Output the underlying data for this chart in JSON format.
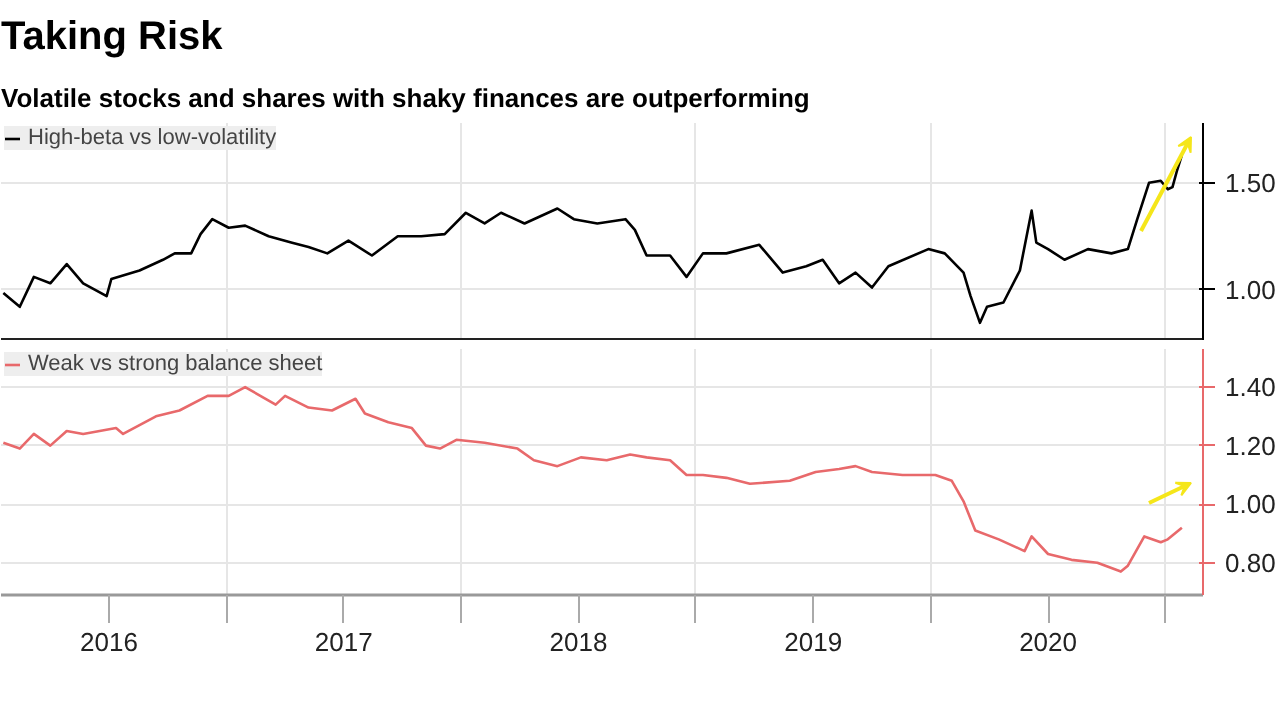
{
  "chart_data": [
    {
      "type": "line",
      "title": "Taking Risk",
      "subtitle": "Volatile stocks and shares with shaky finances are outperforming",
      "series": [
        {
          "name": "High-beta vs low-volatility",
          "color": "#000000",
          "x": [
            2016.05,
            2016.12,
            2016.18,
            2016.25,
            2016.32,
            2016.39,
            2016.49,
            2016.51,
            2016.63,
            2016.73,
            2016.78,
            2016.85,
            2016.89,
            2016.94,
            2017.01,
            2017.08,
            2017.18,
            2017.28,
            2017.35,
            2017.43,
            2017.52,
            2017.62,
            2017.73,
            2017.83,
            2017.93,
            2018.02,
            2018.1,
            2018.17,
            2018.27,
            2018.41,
            2018.48,
            2018.58,
            2018.7,
            2018.74,
            2018.79,
            2018.89,
            2018.96,
            2019.03,
            2019.13,
            2019.27,
            2019.37,
            2019.47,
            2019.54,
            2019.61,
            2019.68,
            2019.75,
            2019.82,
            2019.99,
            2020.06,
            2020.14,
            2020.17,
            2020.21,
            2020.24,
            2020.31,
            2020.38,
            2020.43,
            2020.45,
            2020.5,
            2020.57,
            2020.67,
            2020.77,
            2020.84,
            2020.88,
            2020.93,
            2020.98,
            2021.01,
            2021.03,
            2021.05,
            2021.07
          ],
          "values": [
            0.985,
            0.92,
            1.06,
            1.03,
            1.12,
            1.03,
            0.97,
            1.05,
            1.09,
            1.14,
            1.17,
            1.17,
            1.26,
            1.33,
            1.29,
            1.3,
            1.25,
            1.22,
            1.2,
            1.17,
            1.23,
            1.16,
            1.25,
            1.25,
            1.26,
            1.36,
            1.31,
            1.36,
            1.31,
            1.38,
            1.33,
            1.31,
            1.33,
            1.28,
            1.16,
            1.16,
            1.06,
            1.17,
            1.17,
            1.21,
            1.08,
            1.11,
            1.14,
            1.03,
            1.08,
            1.01,
            1.11,
            1.19,
            1.17,
            1.08,
            0.97,
            0.845,
            0.92,
            0.94,
            1.09,
            1.37,
            1.22,
            1.19,
            1.14,
            1.19,
            1.17,
            1.19,
            1.33,
            1.5,
            1.51,
            1.47,
            1.48,
            1.56,
            1.63
          ]
        }
      ],
      "xlim": [
        2016.04,
        2021.16
      ],
      "xticks": [
        {
          "value": 2017,
          "label": null
        },
        {
          "value": 2018,
          "label": null
        },
        {
          "value": 2019,
          "label": null
        },
        {
          "value": 2020,
          "label": null
        },
        {
          "value": 2021,
          "label": null
        }
      ],
      "ylim": [
        0.76,
        1.78
      ],
      "yticks": [
        {
          "value": 1.0,
          "label": "1.00"
        },
        {
          "value": 1.5,
          "label": "1.50"
        }
      ],
      "tick_labels": "y",
      "grid": true,
      "legend": "top left",
      "marker": "none",
      "line_style": "solid"
    },
    {
      "type": "line",
      "series": [
        {
          "name": "Weak vs strong balance sheet",
          "color": "#e8696b",
          "x": [
            2016.05,
            2016.12,
            2016.18,
            2016.25,
            2016.32,
            2016.39,
            2016.53,
            2016.56,
            2016.7,
            2016.8,
            2016.92,
            2017.01,
            2017.08,
            2017.21,
            2017.25,
            2017.35,
            2017.45,
            2017.55,
            2017.59,
            2017.69,
            2017.79,
            2017.85,
            2017.91,
            2017.98,
            2018.1,
            2018.24,
            2018.31,
            2018.41,
            2018.51,
            2018.62,
            2018.72,
            2018.79,
            2018.89,
            2018.96,
            2019.03,
            2019.13,
            2019.23,
            2019.4,
            2019.51,
            2019.61,
            2019.68,
            2019.75,
            2019.88,
            2020.02,
            2020.09,
            2020.14,
            2020.19,
            2020.29,
            2020.4,
            2020.43,
            2020.5,
            2020.6,
            2020.71,
            2020.81,
            2020.84,
            2020.91,
            2020.98,
            2021.01,
            2021.07
          ],
          "values": [
            1.21,
            1.19,
            1.24,
            1.2,
            1.25,
            1.24,
            1.26,
            1.24,
            1.3,
            1.32,
            1.37,
            1.37,
            1.4,
            1.34,
            1.37,
            1.33,
            1.32,
            1.36,
            1.31,
            1.28,
            1.26,
            1.2,
            1.19,
            1.22,
            1.21,
            1.19,
            1.15,
            1.13,
            1.16,
            1.15,
            1.17,
            1.16,
            1.15,
            1.1,
            1.1,
            1.09,
            1.07,
            1.08,
            1.11,
            1.12,
            1.13,
            1.11,
            1.1,
            1.1,
            1.08,
            1.01,
            0.91,
            0.88,
            0.84,
            0.89,
            0.83,
            0.81,
            0.8,
            0.77,
            0.79,
            0.89,
            0.87,
            0.88,
            0.92
          ]
        }
      ],
      "xlim": [
        2016.04,
        2021.16
      ],
      "xticks": [
        {
          "value": 2016.5,
          "label": "2016"
        },
        {
          "value": 2017,
          "label": null
        },
        {
          "value": 2017.5,
          "label": "2017"
        },
        {
          "value": 2018,
          "label": null
        },
        {
          "value": 2018.5,
          "label": "2018"
        },
        {
          "value": 2019,
          "label": null
        },
        {
          "value": 2019.5,
          "label": "2019"
        },
        {
          "value": 2020,
          "label": null
        },
        {
          "value": 2020.5,
          "label": "2020"
        },
        {
          "value": 2021,
          "label": null
        }
      ],
      "ylim": [
        0.69,
        1.53
      ],
      "yticks": [
        {
          "value": 0.8,
          "label": "0.80"
        },
        {
          "value": 1.0,
          "label": "1.00"
        },
        {
          "value": 1.2,
          "label": "1.20"
        },
        {
          "value": 1.4,
          "label": "1.40"
        }
      ],
      "grid": true,
      "legend": "top left",
      "marker": "none",
      "line_style": "solid"
    }
  ]
}
